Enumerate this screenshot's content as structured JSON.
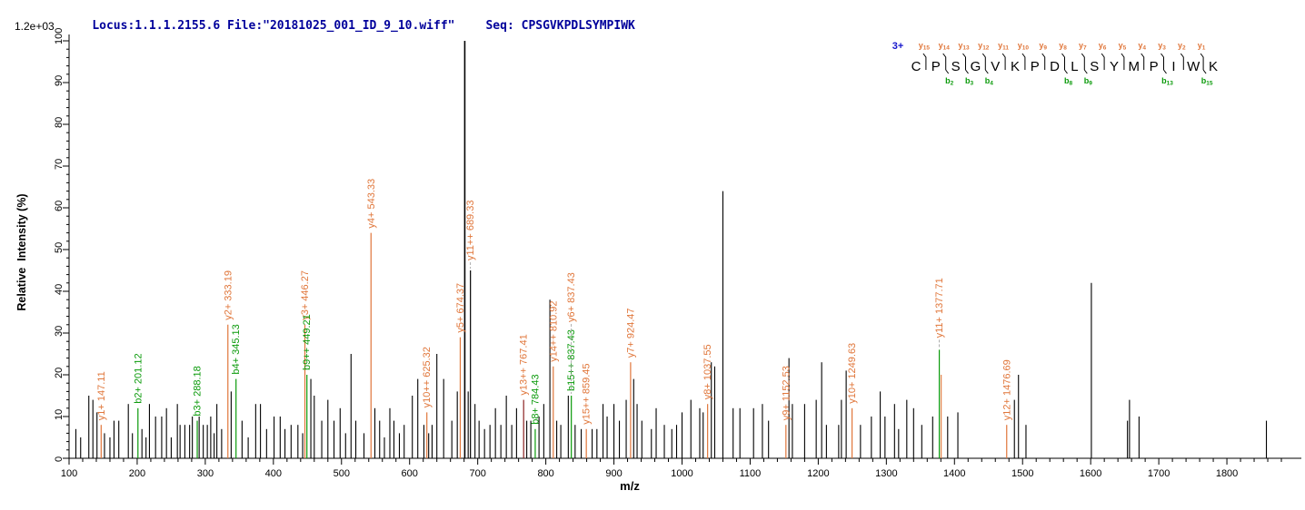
{
  "header": {
    "locus_file": "Locus:1.1.1.2155.6 File:\"20181025_001_ID_9_10.wiff\"",
    "seq_label": "Seq: CPSGVKPDLSYMPIWK",
    "intensity_scale": "1.2e+03"
  },
  "axes": {
    "x_label": "m/z",
    "y_label": "Relative  Intensity (%)",
    "x_min": 100,
    "x_max": 1900,
    "x_major": 100,
    "x_minor": 20,
    "x_last_label": 1800,
    "y_min": 0,
    "y_max": 100,
    "y_major": 10,
    "y_minor": 2
  },
  "colors": {
    "y_ion": "#E0763A",
    "b_ion": "#0A9A0A",
    "peak_black": "#000000",
    "header_blue": "#00009B",
    "charge_blue": "#1414CC",
    "maroon": "#8B2222"
  },
  "peptide_ladder": {
    "charge": "3+",
    "residues": [
      "C",
      "P",
      "S",
      "G",
      "V",
      "K",
      "P",
      "D",
      "L",
      "S",
      "Y",
      "M",
      "P",
      "I",
      "W",
      "K"
    ],
    "y_ion_numbers": [
      15,
      14,
      13,
      12,
      11,
      10,
      9,
      8,
      7,
      6,
      5,
      4,
      3,
      2,
      1
    ],
    "b_ion_positions": [
      2,
      3,
      4,
      8,
      9,
      13,
      15
    ]
  },
  "chart_data": {
    "type": "bar",
    "subtype": "ms2-fragment-spectrum",
    "title": "",
    "xlabel": "m/z",
    "ylabel": "Relative  Intensity (%)",
    "xlim": [
      100,
      1900
    ],
    "ylim": [
      0,
      100
    ],
    "grid": false,
    "base_peak_intensity": "1.2e+03",
    "labeled_peaks": [
      {
        "ion": "y1+",
        "mz": 147.11,
        "pct": 8,
        "series": "y"
      },
      {
        "ion": "b2+",
        "mz": 201.12,
        "pct": 12,
        "series": "b"
      },
      {
        "ion": "b3+",
        "mz": 288.18,
        "pct": 9,
        "series": "b"
      },
      {
        "ion": "y2+",
        "mz": 333.19,
        "pct": 32,
        "series": "y"
      },
      {
        "ion": "b4+",
        "mz": 345.13,
        "pct": 19,
        "series": "b"
      },
      {
        "ion": "y3+",
        "mz": 446.27,
        "pct": 32,
        "series": "y"
      },
      {
        "ion": "b9++",
        "mz": 449.21,
        "pct": 20,
        "series": "b"
      },
      {
        "ion": "y4+",
        "mz": 543.33,
        "pct": 54,
        "series": "y"
      },
      {
        "ion": "y10++",
        "mz": 625.32,
        "pct": 11,
        "series": "y"
      },
      {
        "ion": "y5+",
        "mz": 674.37,
        "pct": 29,
        "series": "y"
      },
      {
        "ion": "y11++",
        "mz": 689.33,
        "pct": 45,
        "series": "y",
        "peak_color": "#000000",
        "lift": 6
      },
      {
        "ion": "y13++",
        "mz": 767.41,
        "pct": 14,
        "series": "y",
        "peak_color": "#8B2222"
      },
      {
        "ion": "b8+",
        "mz": 784.43,
        "pct": 7,
        "series": "b"
      },
      {
        "ion": "y14++",
        "mz": 810.92,
        "pct": 22,
        "series": "y"
      },
      {
        "ion": "b15++",
        "mz": 837.43,
        "pct": 15,
        "series": "b"
      },
      {
        "ion": "y6+",
        "mz": 837.43,
        "pct": 15,
        "series": "y",
        "draw_peak": false,
        "lift": 76
      },
      {
        "ion": "y15++",
        "mz": 859.45,
        "pct": 7,
        "series": "y"
      },
      {
        "ion": "y7+",
        "mz": 924.47,
        "pct": 23,
        "series": "y"
      },
      {
        "ion": "y8+",
        "mz": 1037.55,
        "pct": 13,
        "series": "y"
      },
      {
        "ion": "y9+",
        "mz": 1152.53,
        "pct": 8,
        "series": "y"
      },
      {
        "ion": "y10+",
        "mz": 1249.63,
        "pct": 12,
        "series": "y"
      },
      {
        "ion": "y11+",
        "mz": 1377.71,
        "pct": 26,
        "series": "y",
        "peak_color": "#0A9A0A",
        "lift": 8
      },
      {
        "ion": "y12+",
        "mz": 1476.69,
        "pct": 8,
        "series": "y"
      }
    ],
    "extra_colored_peaks": [
      {
        "mz": 1380.5,
        "pct": 20,
        "color": "#E0763A"
      }
    ],
    "peaks": [
      [
        110,
        7
      ],
      [
        117,
        5
      ],
      [
        129,
        15
      ],
      [
        135,
        14
      ],
      [
        141,
        11
      ],
      [
        152,
        6
      ],
      [
        160,
        5
      ],
      [
        166,
        9
      ],
      [
        173,
        9
      ],
      [
        187,
        13
      ],
      [
        193,
        6
      ],
      [
        207,
        7
      ],
      [
        213,
        5
      ],
      [
        218,
        13
      ],
      [
        227,
        10
      ],
      [
        236,
        10
      ],
      [
        243,
        12
      ],
      [
        250,
        5
      ],
      [
        259,
        13
      ],
      [
        263,
        8
      ],
      [
        270,
        8
      ],
      [
        277,
        8
      ],
      [
        281,
        10
      ],
      [
        291,
        10
      ],
      [
        297,
        8
      ],
      [
        303,
        8
      ],
      [
        308,
        10
      ],
      [
        313,
        6
      ],
      [
        317,
        13
      ],
      [
        324,
        7
      ],
      [
        338,
        16
      ],
      [
        354,
        9
      ],
      [
        363,
        5
      ],
      [
        374,
        13
      ],
      [
        381,
        13
      ],
      [
        390,
        7
      ],
      [
        401,
        10
      ],
      [
        410,
        10
      ],
      [
        417,
        7
      ],
      [
        426,
        8
      ],
      [
        436,
        8
      ],
      [
        443,
        6
      ],
      [
        455,
        19
      ],
      [
        460,
        15
      ],
      [
        471,
        9
      ],
      [
        480,
        14
      ],
      [
        489,
        9
      ],
      [
        498,
        12
      ],
      [
        506,
        6
      ],
      [
        514,
        25
      ],
      [
        521,
        9
      ],
      [
        533,
        6
      ],
      [
        549,
        12
      ],
      [
        556,
        9
      ],
      [
        563,
        5
      ],
      [
        571,
        12
      ],
      [
        577,
        9
      ],
      [
        585,
        6
      ],
      [
        592,
        8
      ],
      [
        604,
        15
      ],
      [
        612,
        19
      ],
      [
        621,
        8
      ],
      [
        628,
        6
      ],
      [
        633,
        8
      ],
      [
        640,
        25
      ],
      [
        650,
        19
      ],
      [
        662,
        9
      ],
      [
        670,
        16
      ],
      [
        681,
        100
      ],
      [
        686,
        16
      ],
      [
        696,
        13
      ],
      [
        702,
        9
      ],
      [
        710,
        7
      ],
      [
        718,
        8
      ],
      [
        726,
        12
      ],
      [
        734,
        8
      ],
      [
        742,
        15
      ],
      [
        750,
        8
      ],
      [
        757,
        12
      ],
      [
        772,
        9
      ],
      [
        778,
        9
      ],
      [
        790,
        10
      ],
      [
        797,
        13
      ],
      [
        806,
        38
      ],
      [
        816,
        9
      ],
      [
        822,
        8
      ],
      [
        833,
        15
      ],
      [
        843,
        8
      ],
      [
        852,
        7
      ],
      [
        868,
        7
      ],
      [
        875,
        7
      ],
      [
        884,
        13
      ],
      [
        890,
        10
      ],
      [
        900,
        13
      ],
      [
        908,
        9
      ],
      [
        918,
        14
      ],
      [
        929,
        19
      ],
      [
        934,
        13
      ],
      [
        941,
        9
      ],
      [
        955,
        7
      ],
      [
        962,
        12
      ],
      [
        974,
        8
      ],
      [
        985,
        7
      ],
      [
        992,
        8
      ],
      [
        1000,
        11
      ],
      [
        1013,
        14
      ],
      [
        1026,
        12
      ],
      [
        1031,
        11
      ],
      [
        1043,
        23
      ],
      [
        1048,
        22
      ],
      [
        1060,
        64
      ],
      [
        1075,
        12
      ],
      [
        1085,
        12
      ],
      [
        1105,
        12
      ],
      [
        1118,
        13
      ],
      [
        1127,
        9
      ],
      [
        1157,
        24
      ],
      [
        1162,
        13
      ],
      [
        1180,
        13
      ],
      [
        1197,
        14
      ],
      [
        1205,
        23
      ],
      [
        1212,
        8
      ],
      [
        1230,
        8
      ],
      [
        1234,
        14
      ],
      [
        1241,
        21
      ],
      [
        1262,
        8
      ],
      [
        1278,
        10
      ],
      [
        1291,
        16
      ],
      [
        1298,
        10
      ],
      [
        1312,
        13
      ],
      [
        1318,
        7
      ],
      [
        1330,
        14
      ],
      [
        1340,
        12
      ],
      [
        1352,
        8
      ],
      [
        1368,
        10
      ],
      [
        1390,
        10
      ],
      [
        1405,
        11
      ],
      [
        1488,
        14
      ],
      [
        1494,
        20
      ],
      [
        1505,
        8
      ],
      [
        1601,
        42
      ],
      [
        1654,
        9
      ],
      [
        1657,
        14
      ],
      [
        1671,
        10
      ],
      [
        1858,
        9
      ]
    ]
  }
}
